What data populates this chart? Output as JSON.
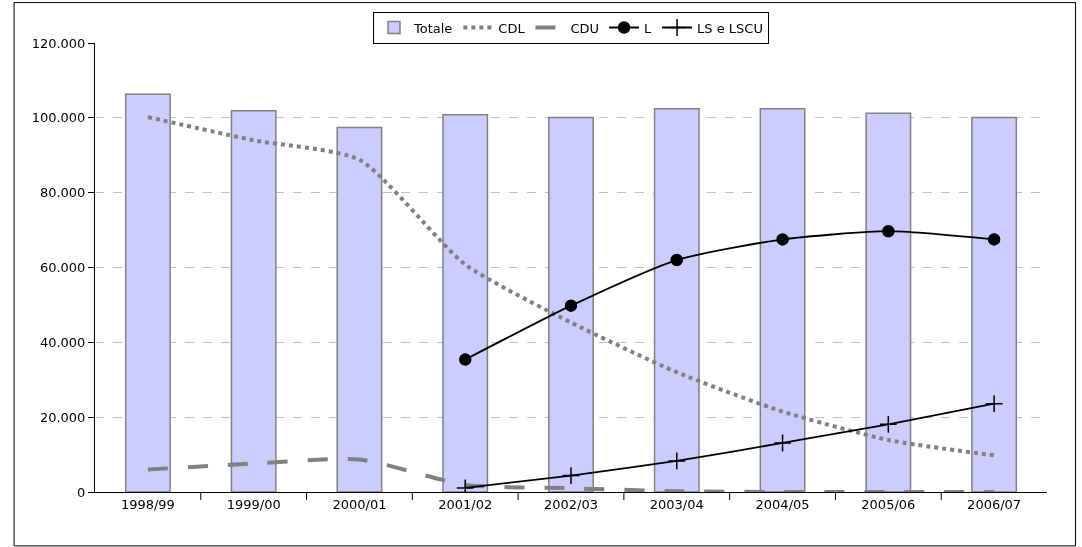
{
  "chart_data": {
    "type": "bar",
    "categories": [
      "1998/99",
      "1999/00",
      "2000/01",
      "2001/02",
      "2002/03",
      "2003/04",
      "2004/05",
      "2005/06",
      "2006/07"
    ],
    "series": [
      {
        "name": "Totale",
        "color": "#ccccff",
        "values": [
          106300,
          101900,
          97400,
          100800,
          100100,
          102400,
          102400,
          101200,
          100100
        ]
      },
      {
        "name": "CDL",
        "type": "line",
        "color": "#808080",
        "line_style": "dotted",
        "marker": "none",
        "values": [
          100200,
          94000,
          88800,
          60800,
          45300,
          32000,
          21500,
          13900,
          9800
        ]
      },
      {
        "name": "CDU",
        "type": "line",
        "color": "#808080",
        "line_style": "dashed",
        "marker": "none",
        "values": [
          6000,
          7600,
          8700,
          1900,
          1000,
          200,
          0,
          0,
          0
        ]
      },
      {
        "name": "L",
        "type": "line",
        "color": "#000000",
        "line_style": "solid",
        "marker": "circle",
        "values": [
          null,
          null,
          null,
          35400,
          49800,
          62000,
          67500,
          69700,
          67500
        ]
      },
      {
        "name": "LS e LSCU",
        "type": "line",
        "color": "#000000",
        "line_style": "solid",
        "marker": "cross",
        "values": [
          null,
          null,
          null,
          1100,
          4400,
          8300,
          13100,
          18100,
          23600
        ]
      }
    ],
    "ylim": [
      0,
      120000
    ],
    "yticks": [
      {
        "value": 0,
        "label": "0"
      },
      {
        "value": 20000,
        "label": "20.000"
      },
      {
        "value": 40000,
        "label": "40.000"
      },
      {
        "value": 60000,
        "label": "60.000"
      },
      {
        "value": 80000,
        "label": "80.000"
      },
      {
        "value": 100000,
        "label": "100.000"
      },
      {
        "value": 120000,
        "label": "120.000"
      }
    ],
    "grid": "y",
    "legend": "top"
  }
}
